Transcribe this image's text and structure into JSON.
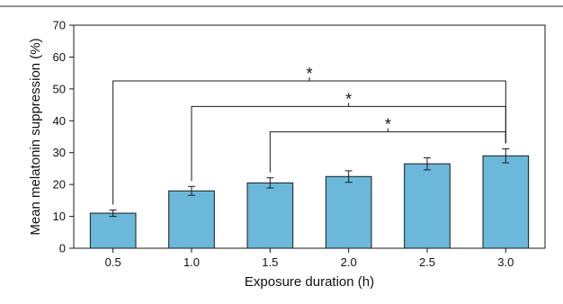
{
  "chart_data": {
    "type": "bar",
    "categories": [
      "0.5",
      "1.0",
      "1.5",
      "2.0",
      "2.5",
      "3.0"
    ],
    "values": [
      11,
      18,
      20.5,
      22.5,
      26.5,
      29
    ],
    "errors": [
      1.0,
      1.4,
      1.6,
      1.8,
      1.9,
      2.2
    ],
    "xlabel": "Exposure duration (h)",
    "ylabel": "Mean melatonin suppression (%)",
    "ylim": [
      0,
      70
    ],
    "yticks": [
      0,
      10,
      20,
      30,
      40,
      50,
      60,
      70
    ],
    "bar_color": "#6bb8db",
    "bar_edge_color": "#1a1a1a",
    "grid": false,
    "significance": [
      {
        "from": "0.5",
        "to": "3.0",
        "level": 52.5,
        "label": "*"
      },
      {
        "from": "1.0",
        "to": "3.0",
        "level": 44.5,
        "label": "*"
      },
      {
        "from": "1.5",
        "to": "3.0",
        "level": 36.5,
        "label": "*"
      }
    ]
  }
}
